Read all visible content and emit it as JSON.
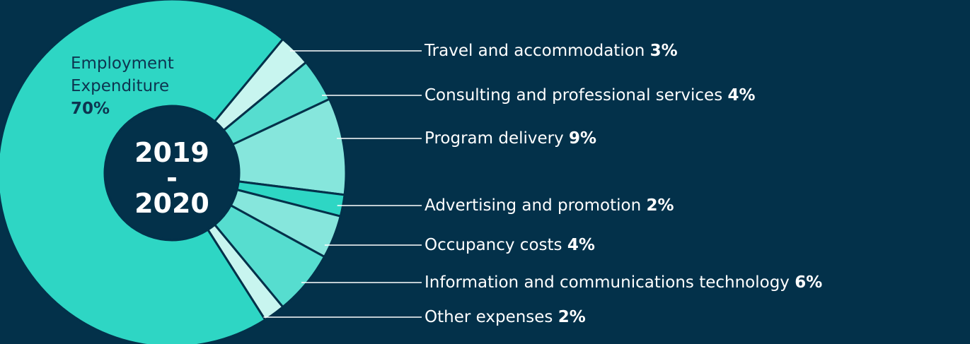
{
  "chart_data": {
    "type": "donut",
    "title": "2019 - 2020",
    "categories": [
      "Employment Expenditure",
      "Travel and accommodation",
      "Consulting and professional services",
      "Program delivery",
      "Advertising and promotion",
      "Occupancy costs",
      "Information and communications technology",
      "Other expenses"
    ],
    "values": [
      70,
      3,
      4,
      9,
      2,
      4,
      6,
      2
    ],
    "value_labels": [
      "70%",
      "3%",
      "4%",
      "9%",
      "2%",
      "4%",
      "6%",
      "2%"
    ],
    "colors": [
      "#2ed6c4",
      "#c8f5ef",
      "#56ddcf",
      "#86e6dc",
      "#2ed6c4",
      "#86e6dc",
      "#56ddcf",
      "#c8f5ef"
    ]
  }
}
